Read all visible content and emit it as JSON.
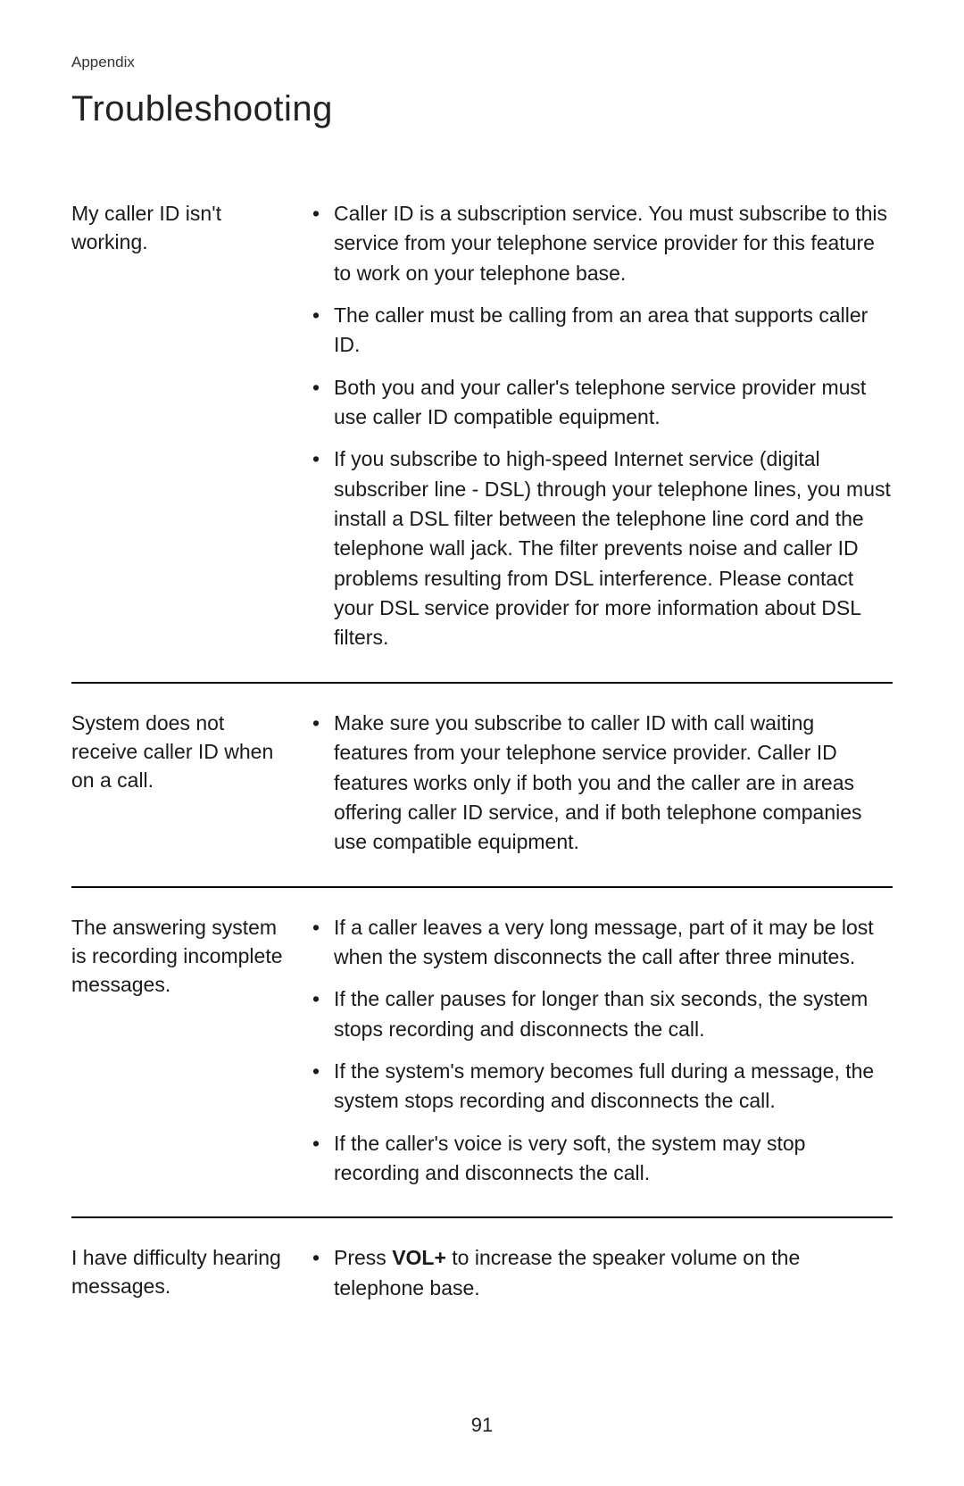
{
  "appendix_label": "Appendix",
  "page_title": "Troubleshooting",
  "sections": [
    {
      "problem": "My caller ID isn't working.",
      "solutions": [
        "Caller ID is a subscription service. You must subscribe to this service from your telephone service provider for this feature to work on your telephone base.",
        "The caller must be calling from an area that supports caller ID.",
        "Both you and your caller's telephone service provider must use caller ID compatible equipment.",
        "If you subscribe to high-speed Internet service (digital subscriber line - DSL) through your telephone lines, you must install a DSL filter between the telephone line cord and the telephone wall jack. The filter prevents noise and caller ID problems resulting from DSL interference. Please contact your DSL service provider for more information about DSL filters."
      ]
    },
    {
      "problem": "System does not receive caller ID when on a call.",
      "solutions": [
        "Make sure you subscribe to caller ID with call waiting features from your telephone service provider. Caller ID features works only if both you and the caller are in areas offering caller ID service, and if both telephone companies use compatible equipment."
      ]
    },
    {
      "problem": "The answering system is recording incomplete messages.",
      "solutions": [
        "If a caller leaves a very long message, part of it may be lost when the system disconnects the call after three minutes.",
        "If the caller pauses for longer than six seconds, the system stops recording and disconnects the call.",
        "If the system's memory becomes full during a message, the system stops recording and disconnects the call.",
        "If the caller's voice is very soft, the system may stop recording and disconnects the call."
      ]
    },
    {
      "problem": "I have difficulty hearing messages.",
      "solution_prefix": "Press ",
      "solution_bold": "VOL+",
      "solution_suffix": " to increase the speaker volume on the telephone base."
    }
  ],
  "page_number": "91"
}
